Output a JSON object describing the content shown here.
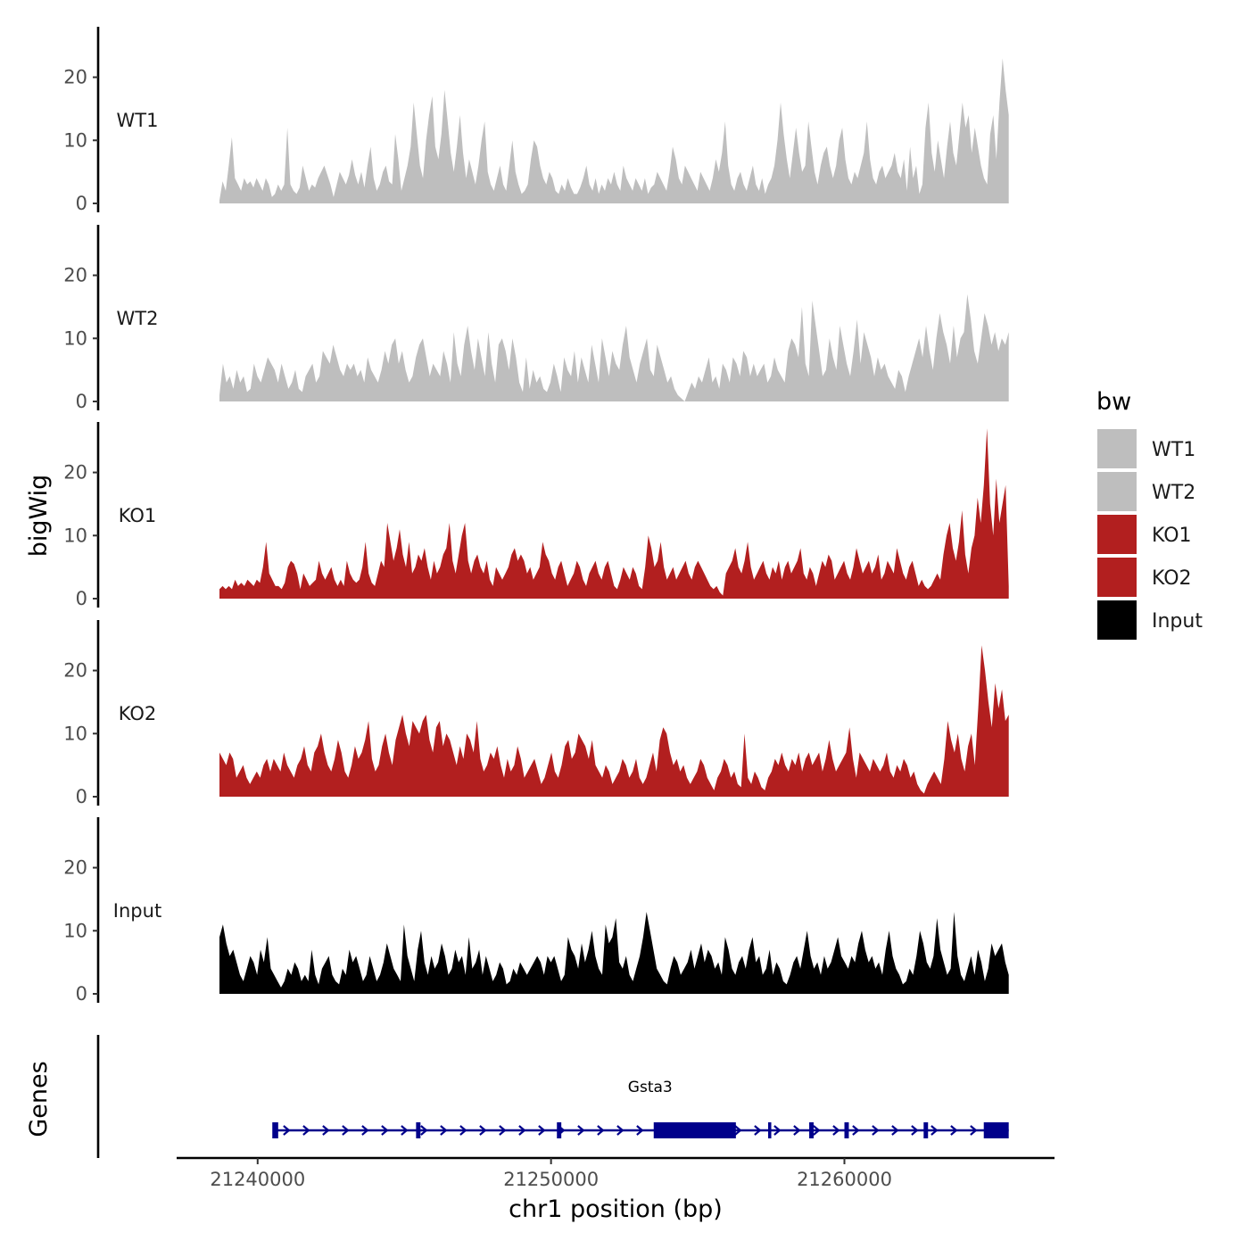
{
  "chart_data": {
    "type": "area",
    "title": "",
    "xlabel": "chr1 position (bp)",
    "ylabel": "bigWig",
    "genes_label": "Genes",
    "xlim": [
      21237300,
      21267100
    ],
    "ylim": [
      0,
      28
    ],
    "y_ticks": [
      0,
      10,
      20
    ],
    "x_ticks": [
      21240000,
      21250000,
      21260000
    ],
    "x_tick_labels": [
      "21240000",
      "21250000",
      "21260000"
    ],
    "x_range": [
      21238700,
      21265600
    ],
    "legend": {
      "title": "bw",
      "entries": [
        {
          "label": "WT1",
          "color": "#bebebe"
        },
        {
          "label": "WT2",
          "color": "#bebebe"
        },
        {
          "label": "KO1",
          "color": "#b21f1f"
        },
        {
          "label": "KO2",
          "color": "#b21f1f"
        },
        {
          "label": "Input",
          "color": "#000000"
        }
      ]
    },
    "series": [
      {
        "name": "WT1",
        "color": "#bebebe",
        "values": [
          0.5,
          3.5,
          2,
          6,
          10.5,
          4,
          3,
          2,
          4,
          3,
          3.5,
          2.5,
          4,
          3,
          2,
          4,
          3,
          1,
          1.5,
          3,
          2,
          3,
          12,
          3,
          2,
          1.5,
          2.5,
          6,
          4,
          2,
          3,
          2.5,
          4,
          5,
          6,
          4.5,
          3,
          1,
          3,
          5,
          4,
          3,
          4.5,
          7,
          4.5,
          3,
          5,
          2.5,
          6,
          9,
          4,
          2,
          3,
          5,
          6,
          3.5,
          3,
          11,
          7,
          2,
          4,
          6,
          9,
          16,
          11,
          6,
          4,
          10,
          14,
          17,
          9,
          7,
          11,
          18,
          13,
          8,
          5,
          9,
          14,
          8,
          4,
          7,
          5,
          3,
          6,
          10,
          13,
          5,
          3,
          2,
          4,
          6,
          3,
          2,
          6,
          10,
          5,
          3,
          1.5,
          2,
          3,
          7,
          10,
          9,
          6,
          4,
          3,
          5,
          4,
          2,
          1.5,
          3,
          2,
          4,
          2.5,
          1.5,
          1.5,
          2.5,
          4,
          6,
          3,
          2,
          4,
          1.5,
          3,
          2,
          4,
          3,
          5,
          3,
          2,
          6,
          4,
          3,
          2,
          4,
          3,
          2,
          4,
          1.5,
          2.5,
          3,
          5,
          4,
          3,
          2,
          5,
          9,
          7,
          4,
          3,
          6,
          5,
          4,
          3,
          2,
          5,
          4,
          3,
          2,
          4,
          7,
          5,
          8,
          13,
          6,
          3,
          2,
          4,
          5,
          3,
          2,
          4,
          6,
          3,
          2,
          4,
          1.5,
          3,
          4,
          6,
          10,
          16,
          11,
          7,
          4,
          8,
          12,
          8,
          5,
          6,
          13,
          9,
          5,
          3,
          6,
          8,
          9,
          6,
          4,
          6,
          10,
          12,
          7,
          4,
          3,
          5,
          4,
          6,
          8,
          13,
          7,
          4,
          3,
          5,
          6,
          4,
          5,
          6,
          8,
          5,
          4,
          7,
          2,
          9,
          4,
          6,
          1.5,
          3,
          12,
          16,
          8,
          5,
          10,
          7,
          4,
          9,
          13,
          8,
          6,
          11,
          16,
          12,
          14,
          8,
          12,
          9,
          6,
          4,
          3,
          11,
          14,
          7,
          16,
          23,
          18,
          14
        ]
      },
      {
        "name": "WT2",
        "color": "#bebebe",
        "values": [
          1,
          6,
          3,
          4,
          2,
          5,
          3,
          4,
          1.5,
          2,
          6,
          4,
          3,
          5,
          7,
          6,
          5,
          3,
          6,
          4,
          2,
          3,
          5,
          2,
          1.5,
          4,
          5,
          6,
          3,
          4,
          8,
          7,
          6,
          9,
          7,
          5,
          4,
          6,
          5,
          6,
          4,
          5,
          3,
          7,
          5,
          4,
          3,
          5,
          8,
          6,
          9,
          10,
          6,
          8,
          5,
          3,
          4,
          7,
          9,
          10,
          7,
          4,
          6,
          5,
          4,
          8,
          6,
          3,
          11,
          6,
          4,
          9,
          12,
          8,
          5,
          10,
          7,
          4,
          11,
          6,
          3,
          9,
          10,
          8,
          5,
          10,
          7,
          3,
          1.5,
          7,
          2,
          5,
          3,
          4,
          2,
          1.5,
          3,
          6,
          4,
          1.5,
          7,
          5,
          4,
          8,
          3,
          7,
          5,
          3,
          9,
          6,
          3,
          10,
          7,
          4,
          8,
          6,
          5,
          9,
          12,
          7,
          5,
          3,
          6,
          8,
          10,
          5,
          4,
          9,
          7,
          5,
          3,
          4,
          2,
          1,
          0.5,
          0,
          1.5,
          3,
          2,
          4,
          3,
          5,
          7,
          3,
          4,
          2,
          6,
          5,
          3,
          7,
          6,
          4,
          8,
          7,
          4,
          6,
          4,
          5,
          6,
          3,
          4,
          7,
          5,
          4,
          3,
          8,
          10,
          9,
          7,
          15,
          6,
          4,
          16,
          12,
          8,
          4,
          5,
          10,
          7,
          5,
          12,
          9,
          6,
          4,
          8,
          13,
          6,
          11,
          9,
          7,
          4,
          7,
          5,
          6,
          4,
          3,
          2,
          5,
          4,
          1.5,
          4,
          6,
          8,
          10,
          7,
          12,
          8,
          5,
          10,
          14,
          11,
          9,
          6,
          12,
          7,
          10,
          11,
          17,
          13,
          8,
          6,
          10,
          14,
          12,
          9,
          11,
          8,
          10,
          9,
          11
        ]
      },
      {
        "name": "KO1",
        "color": "#b21f1f",
        "values": [
          1.5,
          2,
          1.5,
          2,
          1.5,
          3,
          2,
          2.5,
          2,
          3,
          2.5,
          2,
          3,
          2.5,
          5,
          9,
          4,
          3,
          2,
          2,
          1.5,
          2.5,
          5,
          6,
          5.5,
          4,
          1.5,
          4,
          3,
          2,
          2.5,
          3,
          6,
          4,
          3,
          4,
          5,
          3,
          2,
          3,
          2,
          6,
          4,
          3,
          2.5,
          3,
          5,
          9,
          4,
          2.5,
          2,
          4,
          6,
          5,
          12,
          9,
          6,
          8,
          11,
          7,
          5,
          9,
          4,
          5,
          7,
          6,
          8,
          5,
          3,
          6,
          4,
          5,
          7,
          8,
          12,
          6,
          4,
          7,
          10,
          12,
          6,
          4,
          6,
          7,
          5,
          4,
          6,
          3,
          2,
          5,
          4,
          3,
          4,
          5,
          7,
          8,
          6,
          7,
          6,
          4,
          5,
          3,
          4,
          5,
          9,
          7,
          6,
          4,
          3,
          5,
          6,
          4,
          2,
          3,
          4,
          6,
          5,
          3,
          2,
          4,
          5,
          6,
          4,
          3,
          5,
          6,
          4,
          2,
          1.5,
          3,
          5,
          4,
          3,
          5,
          4,
          2,
          1.5,
          5,
          10,
          8,
          5,
          6,
          9,
          5,
          3,
          4,
          5,
          3,
          4,
          5,
          6,
          4,
          3,
          5,
          6,
          5,
          4,
          3,
          2,
          1.5,
          2,
          1,
          0.5,
          4,
          5,
          6,
          8,
          5,
          4,
          6,
          9,
          5,
          3,
          4,
          5,
          6,
          4,
          3,
          5,
          4,
          6,
          3,
          5,
          6,
          4,
          5,
          6,
          8,
          4,
          3,
          5,
          4,
          2,
          4,
          6,
          5,
          7,
          6,
          3,
          4,
          5,
          6,
          4,
          3,
          5,
          8,
          6,
          4,
          5,
          6,
          4,
          5,
          7,
          3,
          4,
          6,
          5,
          4,
          8,
          6,
          4,
          3,
          5,
          6,
          4,
          2,
          3,
          2,
          1.5,
          2,
          3,
          4,
          3,
          7,
          10,
          12,
          8,
          6,
          9,
          14,
          7,
          4,
          8,
          10,
          16,
          12,
          18,
          27,
          15,
          10,
          19,
          12,
          15,
          18,
          2
        ]
      },
      {
        "name": "KO2",
        "color": "#b21f1f",
        "values": [
          7,
          6,
          5,
          7,
          6,
          3,
          4,
          5,
          3,
          2,
          3,
          4,
          3,
          5,
          6,
          4,
          6,
          5,
          4,
          7,
          5,
          4,
          3,
          5,
          6,
          8,
          5,
          4,
          7,
          8,
          10,
          7,
          5,
          4,
          6,
          9,
          7,
          4,
          3,
          5,
          8,
          6,
          7,
          9,
          12,
          6,
          4,
          5,
          8,
          10,
          7,
          5,
          9,
          11,
          13,
          10,
          8,
          12,
          11,
          10,
          12,
          13,
          9,
          7,
          11,
          12,
          8,
          10,
          9,
          7,
          5,
          8,
          6,
          10,
          9,
          7,
          12,
          6,
          4,
          5,
          7,
          6,
          8,
          5,
          3,
          6,
          4,
          5,
          8,
          6,
          3,
          4,
          5,
          6,
          4,
          2,
          3,
          5,
          7,
          4,
          3,
          5,
          8,
          9,
          6,
          7,
          10,
          9,
          8,
          6,
          9,
          5,
          4,
          3,
          5,
          4,
          2,
          3,
          4,
          6,
          5,
          3,
          4,
          6,
          3,
          2,
          3,
          5,
          7,
          4,
          9,
          11,
          10,
          7,
          5,
          6,
          4,
          5,
          3,
          2,
          3,
          4,
          6,
          5,
          3,
          2,
          1,
          3,
          4,
          6,
          5,
          3,
          4,
          2,
          1.5,
          10,
          3,
          2,
          4,
          3,
          1.5,
          1,
          3,
          4,
          6,
          5,
          7,
          5,
          4,
          6,
          5,
          7,
          4,
          6,
          7,
          5,
          6,
          7,
          4,
          6,
          9,
          6,
          4,
          5,
          6,
          7,
          11,
          6,
          3,
          7,
          6,
          5,
          4,
          6,
          5,
          4,
          5,
          7,
          4,
          3,
          5,
          4,
          6,
          5,
          3,
          4,
          2,
          1,
          0.5,
          2,
          3,
          4,
          3,
          2,
          6,
          12,
          9,
          7,
          10,
          6,
          4,
          8,
          10,
          5,
          14,
          24,
          20,
          15,
          11,
          18,
          14,
          17,
          12,
          13
        ]
      },
      {
        "name": "Input",
        "color": "#000000",
        "values": [
          9,
          11,
          8,
          6,
          7,
          5,
          3,
          2,
          4,
          6,
          5,
          3,
          7,
          5,
          9,
          4,
          3,
          2,
          1,
          2,
          4,
          3,
          5,
          4,
          2,
          3,
          2,
          7,
          3,
          1.5,
          4,
          5,
          6,
          3,
          2,
          1.5,
          4,
          3,
          7,
          5,
          6,
          4,
          2,
          3,
          6,
          4,
          2,
          3,
          5,
          8,
          6,
          4,
          3,
          2,
          11,
          6,
          4,
          2,
          7,
          10,
          5,
          3,
          6,
          4,
          5,
          8,
          6,
          3,
          4,
          7,
          5,
          6,
          3,
          9,
          4,
          5,
          7,
          3,
          6,
          4,
          2,
          3,
          5,
          4,
          1.5,
          2,
          4,
          3,
          5,
          4,
          3,
          4,
          5,
          6,
          5,
          3,
          6,
          5,
          6,
          4,
          2,
          3,
          9,
          7,
          6,
          4,
          8,
          5,
          7,
          10,
          6,
          4,
          3,
          11,
          8,
          9,
          12,
          5,
          4,
          6,
          3,
          2,
          4,
          6,
          9,
          13,
          10,
          7,
          4,
          3,
          2,
          1.5,
          4,
          6,
          5,
          3,
          4,
          5,
          7,
          4,
          6,
          8,
          5,
          7,
          6,
          4,
          5,
          3,
          9,
          7,
          4,
          3,
          5,
          6,
          4,
          7,
          9,
          5,
          6,
          3,
          4,
          7,
          3,
          5,
          4,
          2,
          1.5,
          3,
          5,
          6,
          4,
          7,
          10,
          6,
          4,
          5,
          3,
          6,
          4,
          5,
          7,
          9,
          6,
          5,
          4,
          6,
          5,
          8,
          10,
          7,
          5,
          6,
          4,
          5,
          3,
          7,
          10,
          6,
          4,
          3,
          1.5,
          2,
          4,
          3,
          6,
          10,
          8,
          5,
          4,
          6,
          12,
          7,
          5,
          3,
          4,
          13,
          6,
          3,
          2,
          4,
          6,
          3,
          7,
          5,
          2,
          4,
          8,
          6,
          7,
          8,
          5,
          3
        ]
      }
    ],
    "genes": [
      {
        "name": "Gsta3",
        "strand": "+",
        "start": 21240550,
        "end": 21265600,
        "exons": [
          [
            21240500,
            21240700,
            "thin"
          ],
          [
            21245400,
            21245550,
            "thin"
          ],
          [
            21250200,
            21250350,
            "thin"
          ],
          [
            21253500,
            21256300,
            "thick"
          ],
          [
            21257400,
            21257500,
            "thin"
          ],
          [
            21258800,
            21258950,
            "thin"
          ],
          [
            21260000,
            21260150,
            "thin"
          ],
          [
            21262700,
            21262850,
            "thin"
          ],
          [
            21264750,
            21265600,
            "thick"
          ]
        ]
      }
    ]
  }
}
